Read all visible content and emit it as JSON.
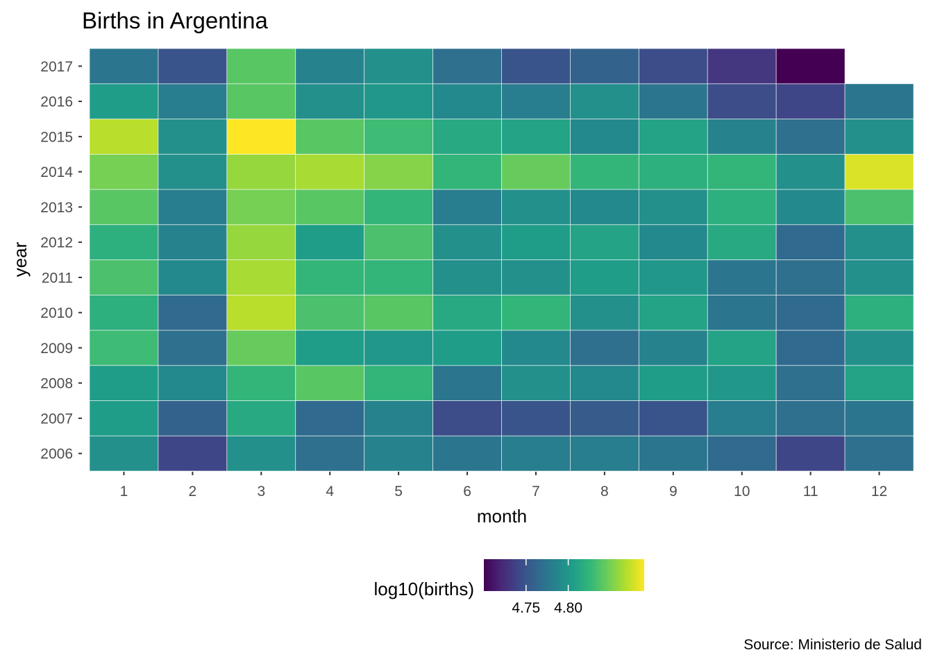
{
  "chart_data": {
    "type": "heatmap",
    "title": "Births in Argentina",
    "xlabel": "month",
    "ylabel": "year",
    "caption": "Source: Ministerio de Salud",
    "x": [
      1,
      2,
      3,
      4,
      5,
      6,
      7,
      8,
      9,
      10,
      11,
      12
    ],
    "x_tick_labels": [
      "1",
      "2",
      "3",
      "4",
      "5",
      "6",
      "7",
      "8",
      "9",
      "10",
      "11",
      "12"
    ],
    "y": [
      2006,
      2007,
      2008,
      2009,
      2010,
      2011,
      2012,
      2013,
      2014,
      2015,
      2016,
      2017
    ],
    "y_tick_labels": [
      "2006",
      "2007",
      "2008",
      "2009",
      "2010",
      "2011",
      "2012",
      "2013",
      "2014",
      "2015",
      "2016",
      "2017"
    ],
    "values": [
      [
        4.795,
        4.74,
        4.795,
        4.77,
        4.785,
        4.775,
        4.78,
        4.78,
        4.775,
        4.765,
        4.74,
        4.77
      ],
      [
        4.805,
        4.76,
        4.815,
        4.765,
        4.785,
        4.745,
        4.75,
        4.755,
        4.75,
        4.78,
        4.77,
        4.775
      ],
      [
        4.805,
        4.79,
        4.825,
        4.84,
        4.825,
        4.775,
        4.795,
        4.79,
        4.805,
        4.8,
        4.77,
        4.81
      ],
      [
        4.83,
        4.77,
        4.845,
        4.805,
        4.8,
        4.805,
        4.79,
        4.77,
        4.785,
        4.81,
        4.765,
        4.795
      ],
      [
        4.82,
        4.765,
        4.87,
        4.835,
        4.84,
        4.815,
        4.825,
        4.795,
        4.81,
        4.775,
        4.765,
        4.82
      ],
      [
        4.835,
        4.79,
        4.865,
        4.825,
        4.825,
        4.795,
        4.795,
        4.805,
        4.8,
        4.775,
        4.77,
        4.795
      ],
      [
        4.82,
        4.785,
        4.86,
        4.805,
        4.835,
        4.795,
        4.805,
        4.81,
        4.79,
        4.815,
        4.765,
        4.795
      ],
      [
        4.84,
        4.78,
        4.85,
        4.84,
        4.825,
        4.78,
        4.795,
        4.79,
        4.795,
        4.82,
        4.79,
        4.835
      ],
      [
        4.85,
        4.795,
        4.86,
        4.865,
        4.855,
        4.825,
        4.845,
        4.825,
        4.82,
        4.825,
        4.795,
        4.88
      ],
      [
        4.87,
        4.795,
        4.89,
        4.84,
        4.83,
        4.815,
        4.81,
        4.79,
        4.81,
        4.785,
        4.77,
        4.795
      ],
      [
        4.805,
        4.78,
        4.84,
        4.795,
        4.8,
        4.79,
        4.78,
        4.795,
        4.775,
        4.745,
        4.74,
        4.775
      ],
      [
        4.775,
        4.75,
        4.84,
        4.785,
        4.795,
        4.77,
        4.75,
        4.76,
        4.745,
        4.73,
        4.7,
        null
      ]
    ],
    "color_scale": {
      "name": "viridis",
      "domain": [
        4.7,
        4.89
      ],
      "stops": [
        "#440154",
        "#482878",
        "#3e4989",
        "#31688e",
        "#26828e",
        "#1f9e89",
        "#35b779",
        "#6ece58",
        "#b5de2b",
        "#fde725"
      ]
    },
    "legend": {
      "title": "log10(births)",
      "position": "bottom",
      "ticks": [
        4.75,
        4.8
      ],
      "tick_labels": [
        "4.75",
        "4.80"
      ]
    },
    "grid": false
  }
}
